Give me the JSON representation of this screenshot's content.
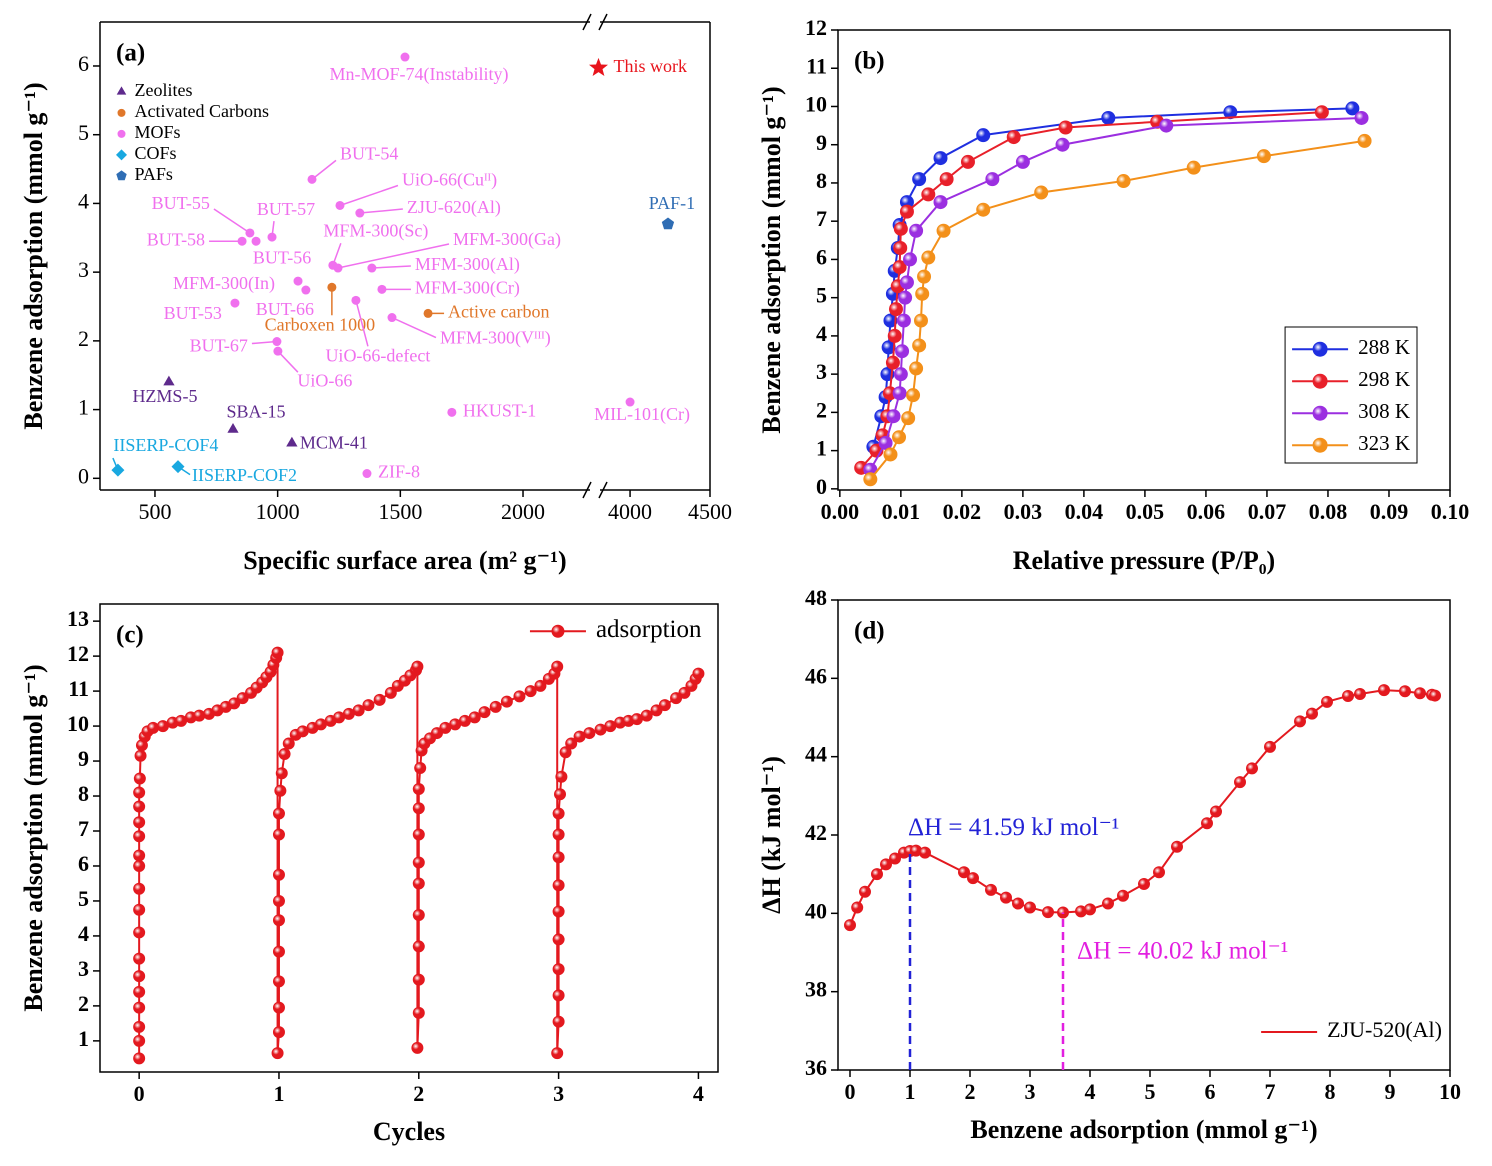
{
  "chart_data": [
    {
      "type": "scatter",
      "label": "(a)",
      "xlabel": "Specific surface area (m² g⁻¹)",
      "ylabel": "Benzene adsorption (mmol g⁻¹)",
      "xlim": [
        276,
        4500
      ],
      "xbreak": [
        2273,
        3812
      ],
      "xticks": [
        500,
        1000,
        1500,
        2000,
        4000,
        4500
      ],
      "ylim": [
        -0.17,
        6.64
      ],
      "yticks": [
        0,
        1,
        2,
        3,
        4,
        5,
        6
      ],
      "legend": "top-left",
      "series": [
        {
          "name": "Zeolites",
          "color": "#5e2a8c",
          "marker": "triangle",
          "labels": [
            "HZMS-5",
            "SBA-15",
            "MCM-41"
          ],
          "x": [
            557,
            818,
            1058
          ],
          "y": [
            1.4,
            0.71,
            0.51
          ]
        },
        {
          "name": "Activated Carbons",
          "color": "#e0772a",
          "marker": "circle",
          "labels": [
            "Carboxen 1000",
            "Active carbon"
          ],
          "x": [
            1221,
            1613
          ],
          "y": [
            2.78,
            2.4
          ]
        },
        {
          "name": "MOFs",
          "color": "#f070ee",
          "marker": "circle",
          "labels": [
            "Mn-MOF-74(Instability)",
            "BUT-54",
            "UiO-66(Cuᴵᴵ)",
            "ZJU-620(Al)",
            "BUT-55",
            "BUT-57",
            "BUT-58",
            "BUT-56",
            "MFM-300(Sc)",
            "MFM-300(Ga)",
            "MFM-300(Al)",
            "MFM-300(In)",
            "MFM-300(Cr)",
            "BUT-66",
            "BUT-53",
            "UiO-66-defect",
            "MFM-300(Vᴵᴵᴵ)",
            "BUT-67",
            "UiO-66",
            "HKUST-1",
            "MIL-101(Cr)",
            "ZIF-8"
          ],
          "x": [
            1519,
            1140,
            1254,
            1335,
            887,
            977,
            855,
            912,
            1225,
            1246,
            1384,
            1083,
            1425,
            1115,
            826,
            1319,
            1466,
            997,
            1001,
            1710,
            4000,
            1364
          ],
          "y": [
            6.13,
            4.35,
            3.97,
            3.86,
            3.57,
            3.51,
            3.45,
            3.45,
            3.1,
            3.06,
            3.06,
            2.87,
            2.75,
            2.74,
            2.55,
            2.59,
            2.34,
            1.99,
            1.85,
            0.96,
            1.11,
            0.07
          ]
        },
        {
          "name": "COFs",
          "color": "#19a8e0",
          "marker": "diamond",
          "labels": [
            "IISERP-COF4",
            "IISERP-COF2"
          ],
          "x": [
            349,
            594
          ],
          "y": [
            0.12,
            0.17
          ]
        },
        {
          "name": "PAFs",
          "color": "#2f6db4",
          "marker": "pentagon",
          "labels": [
            "PAF-1"
          ],
          "x": [
            4237
          ],
          "y": [
            3.7
          ]
        },
        {
          "name": "This work",
          "color": "#e8141c",
          "marker": "star",
          "corner": "top-right",
          "labels": [],
          "x": [],
          "y": []
        }
      ]
    },
    {
      "type": "line",
      "label": "(b)",
      "xlabel": "Relative pressure (P/P₀)",
      "ylabel": "Benzene adsorption (mmol g⁻¹)",
      "xlim": [
        -0.0003,
        0.1
      ],
      "xticks": [
        {
          "value": 0,
          "label": "0.00"
        },
        0.01,
        0.02,
        0.03,
        0.04,
        0.05,
        0.06,
        0.07,
        0.08,
        0.09,
        {
          "value": 0.1,
          "label": "0.10"
        }
      ],
      "ylim": [
        -0.03,
        12
      ],
      "yticks": [
        0,
        1,
        2,
        3,
        4,
        5,
        6,
        7,
        8,
        9,
        10,
        11,
        12
      ],
      "markers": true,
      "legend": "bottom-right",
      "legend_frame": true,
      "series": [
        {
          "name": "288 K",
          "color": "#1f2fe0",
          "x": [
            0.0055,
            0.0068,
            0.0075,
            0.0078,
            0.008,
            0.0083,
            0.0087,
            0.009,
            0.0095,
            0.0098,
            0.011,
            0.013,
            0.0165,
            0.0235,
            0.044,
            0.064,
            0.084
          ],
          "y": [
            1.1,
            1.9,
            2.4,
            3.0,
            3.7,
            4.4,
            5.1,
            5.7,
            6.3,
            6.9,
            7.5,
            8.1,
            8.65,
            9.25,
            9.7,
            9.85,
            9.95
          ]
        },
        {
          "name": "298 K",
          "color": "#e8202a",
          "x": [
            0.0035,
            0.006,
            0.007,
            0.0078,
            0.0082,
            0.0087,
            0.009,
            0.0092,
            0.0095,
            0.0098,
            0.0099,
            0.01,
            0.011,
            0.0145,
            0.0175,
            0.021,
            0.0285,
            0.037,
            0.052,
            0.079
          ],
          "y": [
            0.55,
            1.0,
            1.4,
            1.9,
            2.5,
            3.3,
            4.0,
            4.7,
            5.3,
            5.8,
            6.3,
            6.8,
            7.25,
            7.7,
            8.1,
            8.55,
            9.2,
            9.45,
            9.6,
            9.85
          ]
        },
        {
          "name": "308 K",
          "color": "#9b2fe0",
          "x": [
            0.005,
            0.0075,
            0.0088,
            0.0098,
            0.01,
            0.0102,
            0.0105,
            0.0107,
            0.011,
            0.0115,
            0.0125,
            0.0165,
            0.025,
            0.03,
            0.0365,
            0.0535,
            0.0855
          ],
          "y": [
            0.5,
            1.2,
            1.9,
            2.5,
            3.0,
            3.6,
            4.4,
            5.0,
            5.4,
            6.0,
            6.75,
            7.5,
            8.1,
            8.55,
            9.0,
            9.5,
            9.7
          ]
        },
        {
          "name": "323 K",
          "color": "#f3901a",
          "x": [
            0.005,
            0.0083,
            0.0097,
            0.0112,
            0.012,
            0.0125,
            0.013,
            0.0133,
            0.0135,
            0.0138,
            0.0145,
            0.017,
            0.0235,
            0.033,
            0.0465,
            0.058,
            0.0695,
            0.086
          ],
          "y": [
            0.25,
            0.9,
            1.35,
            1.85,
            2.45,
            3.15,
            3.75,
            4.4,
            5.1,
            5.55,
            6.05,
            6.75,
            7.3,
            7.75,
            8.05,
            8.4,
            8.7,
            9.1
          ]
        }
      ]
    },
    {
      "type": "line",
      "label": "(c)",
      "xlabel": "Cycles",
      "ylabel": "Benzene adsorption (mmol g⁻¹)",
      "xlim": [
        -0.28,
        4.14
      ],
      "xticks": [
        0,
        1,
        2,
        3,
        4
      ],
      "ylim": [
        0.11,
        13.49
      ],
      "yticks": [
        1,
        2,
        3,
        4,
        5,
        6,
        7,
        8,
        9,
        10,
        11,
        12,
        13
      ],
      "markers": true,
      "legend": "top-right",
      "series": [
        {
          "name": "adsorption",
          "color": "#e3191f",
          "x": [
            0,
            0,
            0,
            0,
            0,
            0,
            0,
            0,
            0,
            0,
            0,
            0,
            0,
            0,
            0,
            0,
            0.005,
            0.01,
            0.02,
            0.04,
            0.06,
            0.1,
            0.17,
            0.24,
            0.3,
            0.37,
            0.43,
            0.5,
            0.56,
            0.62,
            0.68,
            0.74,
            0.8,
            0.84,
            0.88,
            0.91,
            0.94,
            0.96,
            0.98,
            0.99,
            0.99,
            1,
            1,
            1,
            1,
            1,
            1,
            1,
            1,
            1,
            1.01,
            1.02,
            1.04,
            1.07,
            1.12,
            1.17,
            1.24,
            1.3,
            1.37,
            1.43,
            1.5,
            1.57,
            1.64,
            1.72,
            1.8,
            1.85,
            1.9,
            1.94,
            1.98,
            1.99,
            1.99,
            2,
            2,
            2,
            2,
            2,
            2,
            2,
            2,
            2,
            2.01,
            2.02,
            2.04,
            2.08,
            2.13,
            2.19,
            2.26,
            2.33,
            2.4,
            2.47,
            2.55,
            2.63,
            2.72,
            2.8,
            2.87,
            2.93,
            2.97,
            2.99,
            2.99,
            3,
            3,
            3,
            3,
            3,
            3,
            3,
            3,
            3,
            3.01,
            3.02,
            3.05,
            3.09,
            3.15,
            3.22,
            3.3,
            3.37,
            3.44,
            3.5,
            3.56,
            3.63,
            3.7,
            3.76,
            3.84,
            3.9,
            3.95,
            3.98,
            4.0
          ],
          "y": [
            0.5,
            1.0,
            1.4,
            1.95,
            2.4,
            2.85,
            3.35,
            4.1,
            4.75,
            5.35,
            6.0,
            6.3,
            6.85,
            7.25,
            7.7,
            8.1,
            8.5,
            9.15,
            9.45,
            9.7,
            9.85,
            9.95,
            10.0,
            10.1,
            10.15,
            10.25,
            10.3,
            10.35,
            10.45,
            10.55,
            10.65,
            10.8,
            10.95,
            11.1,
            11.25,
            11.4,
            11.55,
            11.75,
            11.95,
            12.1,
            0.65,
            1.25,
            1.95,
            2.7,
            3.55,
            4.45,
            5.0,
            5.75,
            6.9,
            7.5,
            8.15,
            8.65,
            9.2,
            9.5,
            9.75,
            9.85,
            9.95,
            10.05,
            10.15,
            10.25,
            10.35,
            10.45,
            10.6,
            10.75,
            10.95,
            11.15,
            11.3,
            11.45,
            11.6,
            11.7,
            0.8,
            1.8,
            2.75,
            3.7,
            4.6,
            5.5,
            6.1,
            6.9,
            7.65,
            8.2,
            8.8,
            9.3,
            9.5,
            9.65,
            9.8,
            9.95,
            10.05,
            10.15,
            10.25,
            10.4,
            10.55,
            10.7,
            10.85,
            11.0,
            11.15,
            11.35,
            11.5,
            11.7,
            0.65,
            1.55,
            2.3,
            3.05,
            3.9,
            4.7,
            5.45,
            6.25,
            6.9,
            7.5,
            8.05,
            8.55,
            9.25,
            9.5,
            9.7,
            9.8,
            9.9,
            10.0,
            10.1,
            10.15,
            10.2,
            10.3,
            10.45,
            10.6,
            10.8,
            10.95,
            11.15,
            11.35,
            11.5
          ]
        }
      ]
    },
    {
      "type": "line",
      "label": "(d)",
      "xlabel": "Benzene adsorption (mmol g⁻¹)",
      "ylabel": "ΔH (kJ mol⁻¹)",
      "xlim": [
        -0.2,
        10
      ],
      "xticks": [
        0,
        1,
        2,
        3,
        4,
        5,
        6,
        7,
        8,
        9,
        10
      ],
      "ylim": [
        36,
        48
      ],
      "yticks": [
        36,
        38,
        40,
        42,
        44,
        46,
        48
      ],
      "markers": true,
      "legend_markers": false,
      "legend": "bottom-right",
      "series": [
        {
          "name": "ZJU-520(Al)",
          "color": "#e3191f",
          "x": [
            0,
            0.12,
            0.25,
            0.45,
            0.6,
            0.75,
            0.9,
            1.0,
            1.1,
            1.25,
            1.9,
            2.05,
            2.35,
            2.6,
            2.8,
            3.0,
            3.3,
            3.55,
            3.85,
            4.0,
            4.3,
            4.55,
            4.9,
            5.15,
            5.45,
            5.95,
            6.1,
            6.5,
            6.7,
            7.0,
            7.5,
            7.7,
            7.95,
            8.3,
            8.5,
            8.9,
            9.25,
            9.5,
            9.7,
            9.75
          ],
          "y": [
            39.7,
            40.15,
            40.55,
            41.0,
            41.25,
            41.4,
            41.55,
            41.59,
            41.6,
            41.55,
            41.05,
            40.9,
            40.6,
            40.4,
            40.25,
            40.15,
            40.03,
            40.02,
            40.05,
            40.1,
            40.25,
            40.45,
            40.75,
            41.05,
            41.7,
            42.3,
            42.6,
            43.35,
            43.7,
            44.25,
            44.9,
            45.1,
            45.4,
            45.55,
            45.6,
            45.7,
            45.67,
            45.62,
            45.58,
            45.56
          ]
        }
      ],
      "annotations": [
        {
          "text": "ΔH = 41.59 kJ mol⁻¹",
          "x": 1.0,
          "y": 41.59,
          "color": "#2222d6"
        },
        {
          "text": "ΔH = 40.02 kJ mol⁻¹",
          "x": 3.55,
          "y": 40.02,
          "color": "#e21fe0"
        }
      ]
    }
  ]
}
